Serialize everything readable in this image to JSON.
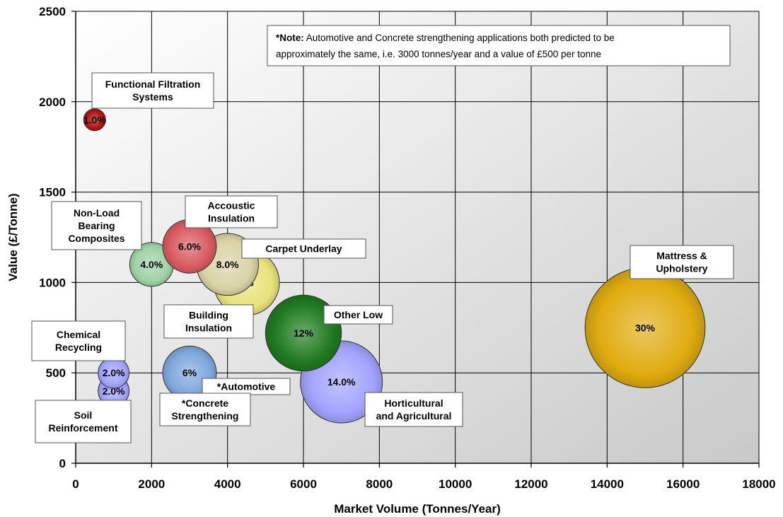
{
  "chart_data": {
    "type": "bubble",
    "xlabel": "Market Volume (Tonnes/Year)",
    "ylabel": "Value (£/Tonne)",
    "xlim": [
      0,
      18000
    ],
    "ylim": [
      0,
      2500
    ],
    "xticks": [
      "0",
      "2000",
      "4000",
      "6000",
      "8000",
      "10000",
      "12000",
      "14000",
      "16000",
      "18000"
    ],
    "yticks": [
      "0",
      "500",
      "1000",
      "1500",
      "2000",
      "2500"
    ],
    "grid": true,
    "note": {
      "prefix": "*Note:",
      "line1": " Automotive and Concrete strengthening applications both predicted to be",
      "line2": "approximately the same, i.e. 3000 tonnes/year and a value of £500  per tonne"
    },
    "points": [
      {
        "name": "Functional Filtration Systems",
        "callout_lines": [
          "Functional Filtration",
          "Systems"
        ],
        "x": 500,
        "y": 1900,
        "label": "1.0%",
        "share": 1.0,
        "color": "#b31212"
      },
      {
        "name": "Non-Load Bearing Composites",
        "callout_lines": [
          "Non-Load",
          "Bearing",
          "Composites"
        ],
        "x": 2000,
        "y": 1100,
        "label": "4.0%",
        "share": 4.0,
        "color": "#9fd3a6"
      },
      {
        "name": "Accoustic Insulation",
        "callout_lines": [
          "Accoustic",
          "Insulation"
        ],
        "x": 3000,
        "y": 1200,
        "label": "6.0%",
        "share": 6.0,
        "color": "#d85a60"
      },
      {
        "name": "Carpet Underlay",
        "callout_lines": [
          "Carpet Underlay"
        ],
        "x": 4000,
        "y": 1100,
        "label": "8.0%",
        "share": 8.0,
        "color": "#d9d3a6"
      },
      {
        "name": "Building Insulation",
        "callout_lines": [
          "Building",
          "Insulation"
        ],
        "x": 4500,
        "y": 1000,
        "label": "9%",
        "share": 9.0,
        "color": "#e8e37a"
      },
      {
        "name": "Other Low",
        "callout_lines": [
          "Other Low"
        ],
        "x": 6000,
        "y": 720,
        "label": "12%",
        "share": 12.0,
        "color": "#1f7a1f"
      },
      {
        "name": "Horticultural and Agricultural",
        "callout_lines": [
          "Horticultural",
          "and Agricultural"
        ],
        "x": 7000,
        "y": 450,
        "label": "14.0%",
        "share": 14.0,
        "color": "#a3a3ff"
      },
      {
        "name": "Mattress & Upholstery",
        "callout_lines": [
          "Mattress &",
          "Upholstery"
        ],
        "x": 15000,
        "y": 750,
        "label": "30%",
        "share": 30.0,
        "color": "#e0ac10"
      },
      {
        "name": "Chemical Recycling",
        "callout_lines": [
          "Chemical",
          "Recycling"
        ],
        "x": 1000,
        "y": 500,
        "label": "2.0%",
        "share": 2.0,
        "color": "#a3a3ff"
      },
      {
        "name": "Soil Reinforcement",
        "callout_lines": [
          "Soil",
          "Reinforcement"
        ],
        "x": 1000,
        "y": 400,
        "label": "2.0%",
        "share": 2.0,
        "color": "#a3a3ff"
      },
      {
        "name": "Automotive / Concrete Strengthening",
        "callout_lines": [],
        "x": 3000,
        "y": 500,
        "label": "6%",
        "share": 6.0,
        "color": "#7fa8dc"
      }
    ],
    "extra_callouts": [
      {
        "name": "Automotive",
        "lines": [
          "*Automotive"
        ]
      },
      {
        "name": "Concrete Strengthening",
        "lines": [
          "*Concrete",
          "Strengthening"
        ]
      }
    ]
  }
}
